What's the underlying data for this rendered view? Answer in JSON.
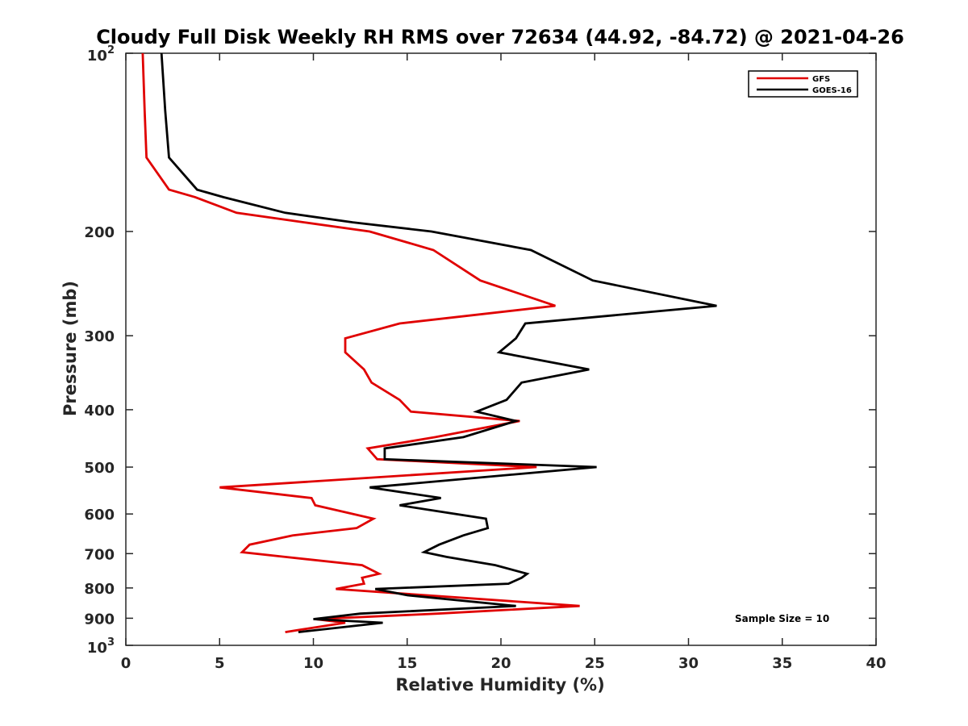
{
  "chart_data": {
    "type": "line",
    "title": "Cloudy Full Disk Weekly RH RMS over 72634 (44.92, -84.72) @ 2021-04-26",
    "xlabel": "Relative Humidity (%)",
    "ylabel": "Pressure (mb)",
    "xlim": [
      0,
      40
    ],
    "ylim": [
      100,
      1000
    ],
    "yscale": "log",
    "y_reversed": true,
    "grid": false,
    "legend_position": "top-right",
    "x_ticks": [
      0,
      5,
      10,
      15,
      20,
      25,
      30,
      35,
      40
    ],
    "x_tick_labels": [
      "0",
      "5",
      "10",
      "15",
      "20",
      "25",
      "30",
      "35",
      "40"
    ],
    "y_ticks": [
      {
        "value": 100,
        "base": "10",
        "exp": "2"
      },
      {
        "value": 200,
        "label": "200"
      },
      {
        "value": 300,
        "label": "300"
      },
      {
        "value": 400,
        "label": "400"
      },
      {
        "value": 500,
        "label": "500"
      },
      {
        "value": 600,
        "label": "600"
      },
      {
        "value": 700,
        "label": "700"
      },
      {
        "value": 800,
        "label": "800"
      },
      {
        "value": 900,
        "label": "900"
      },
      {
        "value": 1000,
        "base": "10",
        "exp": "3"
      }
    ],
    "series": [
      {
        "name": "GFS",
        "color": "#e00000",
        "points": [
          [
            0.9,
            100
          ],
          [
            1.0,
            125
          ],
          [
            1.1,
            150
          ],
          [
            2.3,
            170
          ],
          [
            3.7,
            175
          ],
          [
            5.9,
            186
          ],
          [
            9.5,
            193
          ],
          [
            13.0,
            200
          ],
          [
            16.4,
            215
          ],
          [
            18.9,
            242
          ],
          [
            22.9,
            267
          ],
          [
            14.6,
            286
          ],
          [
            11.7,
            303
          ],
          [
            11.7,
            320
          ],
          [
            12.7,
            342
          ],
          [
            13.1,
            360
          ],
          [
            14.6,
            385
          ],
          [
            15.2,
            403
          ],
          [
            21.0,
            418
          ],
          [
            16.5,
            445
          ],
          [
            12.9,
            465
          ],
          [
            13.4,
            485
          ],
          [
            21.9,
            500
          ],
          [
            5.0,
            541
          ],
          [
            9.9,
            564
          ],
          [
            10.1,
            580
          ],
          [
            13.2,
            611
          ],
          [
            12.3,
            634
          ],
          [
            8.9,
            652
          ],
          [
            6.6,
            676
          ],
          [
            6.2,
            696
          ],
          [
            8.5,
            709
          ],
          [
            12.6,
            732
          ],
          [
            13.5,
            757
          ],
          [
            12.6,
            769
          ],
          [
            12.7,
            787
          ],
          [
            11.2,
            803
          ],
          [
            24.2,
            858
          ],
          [
            16.6,
            884
          ],
          [
            10.1,
            903
          ],
          [
            11.7,
            916
          ],
          [
            9.4,
            940
          ],
          [
            8.5,
            950
          ]
        ]
      },
      {
        "name": "GOES-16",
        "color": "#000000",
        "points": [
          [
            1.9,
            100
          ],
          [
            2.1,
            125
          ],
          [
            2.3,
            150
          ],
          [
            3.8,
            170
          ],
          [
            5.2,
            175
          ],
          [
            8.5,
            186
          ],
          [
            12.1,
            193
          ],
          [
            16.3,
            200
          ],
          [
            21.6,
            215
          ],
          [
            24.9,
            242
          ],
          [
            31.5,
            267
          ],
          [
            21.3,
            286
          ],
          [
            20.8,
            303
          ],
          [
            19.9,
            320
          ],
          [
            24.7,
            342
          ],
          [
            21.1,
            360
          ],
          [
            20.3,
            385
          ],
          [
            18.7,
            403
          ],
          [
            20.8,
            418
          ],
          [
            18.0,
            445
          ],
          [
            13.8,
            465
          ],
          [
            13.8,
            485
          ],
          [
            25.1,
            500
          ],
          [
            13.0,
            541
          ],
          [
            16.8,
            564
          ],
          [
            14.6,
            580
          ],
          [
            19.2,
            611
          ],
          [
            19.3,
            634
          ],
          [
            18.0,
            652
          ],
          [
            16.7,
            676
          ],
          [
            15.9,
            696
          ],
          [
            17.1,
            709
          ],
          [
            19.7,
            732
          ],
          [
            21.4,
            757
          ],
          [
            21.1,
            769
          ],
          [
            20.4,
            787
          ],
          [
            13.3,
            803
          ],
          [
            15.0,
            823
          ],
          [
            20.8,
            858
          ],
          [
            12.5,
            884
          ],
          [
            10.0,
            903
          ],
          [
            13.7,
            916
          ],
          [
            9.2,
            950
          ]
        ]
      }
    ],
    "annotation": "Sample Size = 10"
  }
}
